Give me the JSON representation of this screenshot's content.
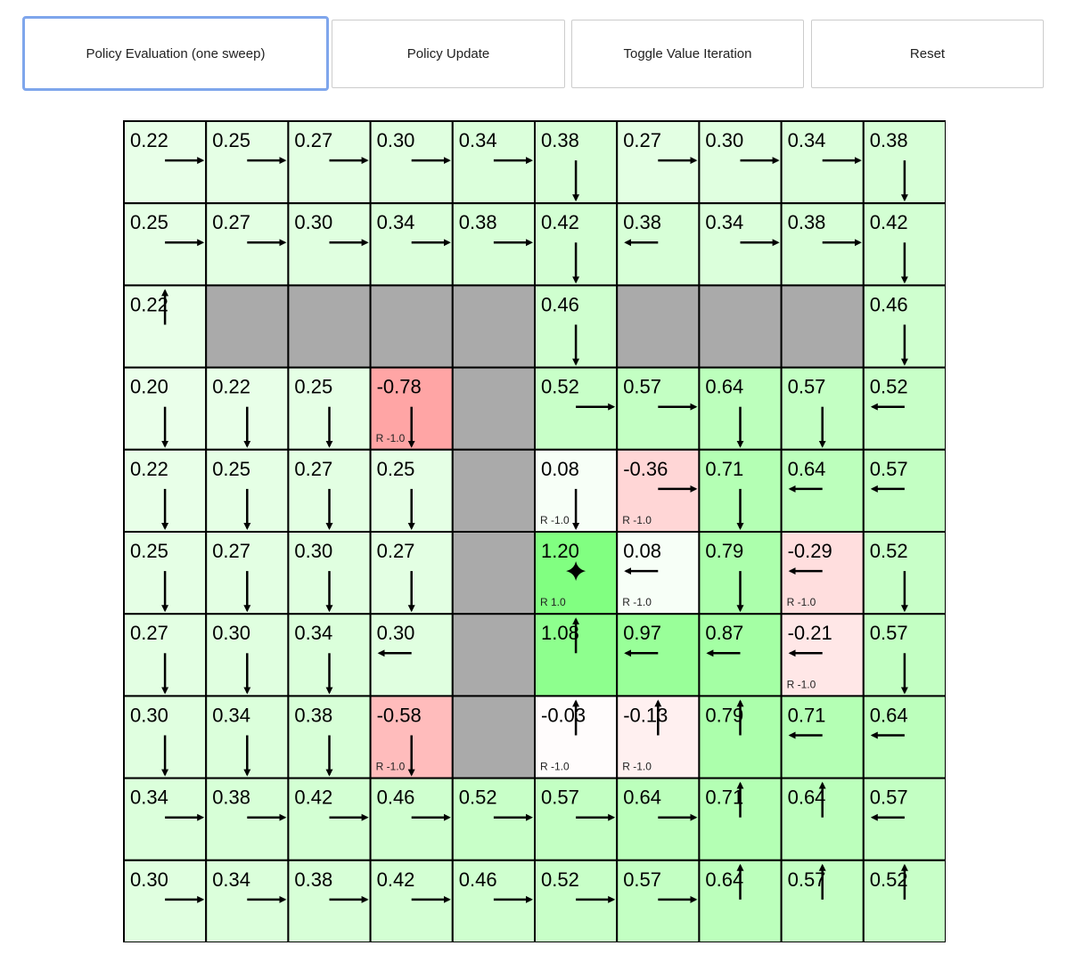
{
  "buttons": [
    {
      "label": "Policy Evaluation (one sweep)",
      "focused": true
    },
    {
      "label": "Policy Update"
    },
    {
      "label": "Toggle Value Iteration"
    },
    {
      "label": "Reset"
    }
  ],
  "colors": {
    "positive": "#00ff00",
    "negative": "#ff0000",
    "wall": "#aaaaaa",
    "border": "#000000"
  },
  "grid": {
    "rows": [
      [
        [
          "0.22",
          "r"
        ],
        [
          "0.25",
          "r"
        ],
        [
          "0.27",
          "r"
        ],
        [
          "0.30",
          "r"
        ],
        [
          "0.34",
          "r"
        ],
        [
          "0.38",
          "d"
        ],
        [
          "0.27",
          "r"
        ],
        [
          "0.30",
          "r"
        ],
        [
          "0.34",
          "r"
        ],
        [
          "0.38",
          "d"
        ]
      ],
      [
        [
          "0.25",
          "r"
        ],
        [
          "0.27",
          "r"
        ],
        [
          "0.30",
          "r"
        ],
        [
          "0.34",
          "r"
        ],
        [
          "0.38",
          "r"
        ],
        [
          "0.42",
          "d"
        ],
        [
          "0.38",
          "l"
        ],
        [
          "0.34",
          "r"
        ],
        [
          "0.38",
          "r"
        ],
        [
          "0.42",
          "d"
        ]
      ],
      [
        [
          "0.22",
          "u"
        ],
        null,
        null,
        null,
        null,
        [
          "0.46",
          "d"
        ],
        null,
        null,
        null,
        [
          "0.46",
          "d"
        ]
      ],
      [
        [
          "0.20",
          "d"
        ],
        [
          "0.22",
          "d"
        ],
        [
          "0.25",
          "d"
        ],
        [
          "-0.78",
          "d",
          "R -1.0"
        ],
        null,
        [
          "0.52",
          "r"
        ],
        [
          "0.57",
          "r"
        ],
        [
          "0.64",
          "d"
        ],
        [
          "0.57",
          "d"
        ],
        [
          "0.52",
          "l"
        ]
      ],
      [
        [
          "0.22",
          "d"
        ],
        [
          "0.25",
          "d"
        ],
        [
          "0.27",
          "d"
        ],
        [
          "0.25",
          "d"
        ],
        null,
        [
          "0.08",
          "d",
          "R -1.0"
        ],
        [
          "-0.36",
          "r",
          "R -1.0"
        ],
        [
          "0.71",
          "d"
        ],
        [
          "0.64",
          "l"
        ],
        [
          "0.57",
          "l"
        ]
      ],
      [
        [
          "0.25",
          "d"
        ],
        [
          "0.27",
          "d"
        ],
        [
          "0.30",
          "d"
        ],
        [
          "0.27",
          "d"
        ],
        null,
        [
          "1.20",
          "goal",
          "R 1.0"
        ],
        [
          "0.08",
          "l",
          "R -1.0"
        ],
        [
          "0.79",
          "d"
        ],
        [
          "-0.29",
          "l",
          "R -1.0"
        ],
        [
          "0.52",
          "d"
        ]
      ],
      [
        [
          "0.27",
          "d"
        ],
        [
          "0.30",
          "d"
        ],
        [
          "0.34",
          "d"
        ],
        [
          "0.30",
          "l"
        ],
        null,
        [
          "1.08",
          "u"
        ],
        [
          "0.97",
          "l"
        ],
        [
          "0.87",
          "l"
        ],
        [
          "-0.21",
          "l",
          "R -1.0"
        ],
        [
          "0.57",
          "d"
        ]
      ],
      [
        [
          "0.30",
          "d"
        ],
        [
          "0.34",
          "d"
        ],
        [
          "0.38",
          "d"
        ],
        [
          "-0.58",
          "d",
          "R -1.0"
        ],
        null,
        [
          "-0.03",
          "u",
          "R -1.0"
        ],
        [
          "-0.13",
          "u",
          "R -1.0"
        ],
        [
          "0.79",
          "u"
        ],
        [
          "0.71",
          "l"
        ],
        [
          "0.64",
          "l"
        ]
      ],
      [
        [
          "0.34",
          "r"
        ],
        [
          "0.38",
          "r"
        ],
        [
          "0.42",
          "r"
        ],
        [
          "0.46",
          "r"
        ],
        [
          "0.52",
          "r"
        ],
        [
          "0.57",
          "r"
        ],
        [
          "0.64",
          "r"
        ],
        [
          "0.71",
          "u"
        ],
        [
          "0.64",
          "u"
        ],
        [
          "0.57",
          "l"
        ]
      ],
      [
        [
          "0.30",
          "r"
        ],
        [
          "0.34",
          "r"
        ],
        [
          "0.38",
          "r"
        ],
        [
          "0.42",
          "r"
        ],
        [
          "0.46",
          "r"
        ],
        [
          "0.52",
          "r"
        ],
        [
          "0.57",
          "r"
        ],
        [
          "0.64",
          "u"
        ],
        [
          "0.57",
          "u"
        ],
        [
          "0.52",
          "u"
        ]
      ]
    ]
  }
}
